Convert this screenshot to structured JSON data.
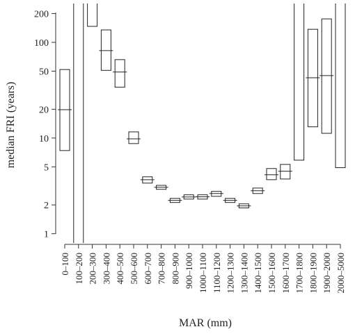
{
  "chart_data": {
    "type": "range-box",
    "y_label": "median FRI (years)",
    "x_label": "MAR (mm)",
    "log_y": true,
    "categories": [
      "0–100",
      "100–200",
      "200–300",
      "300–400",
      "400–500",
      "500–600",
      "600–700",
      "700–800",
      "800–900",
      "900–1000",
      "1000–1100",
      "1100–1200",
      "1200–1300",
      "1300–1400",
      "1400–1500",
      "1500–1600",
      "1600–1700",
      "1700–1800",
      "1800–1900",
      "1900–2000",
      "2000–5000"
    ],
    "low": [
      7.4,
      0.7,
      147,
      51,
      34,
      8.75,
      3.38,
      2.91,
      2.12,
      2.3,
      2.3,
      2.46,
      2.12,
      1.86,
      2.63,
      3.67,
      3.73,
      5.87,
      13.1,
      11.2,
      4.9
    ],
    "high": [
      52,
      300,
      300,
      135,
      66,
      11.6,
      3.93,
      3.2,
      2.34,
      2.55,
      2.55,
      2.77,
      2.34,
      2.05,
      3.0,
      4.8,
      5.3,
      300,
      137,
      176,
      300
    ],
    "median": [
      19.8,
      null,
      null,
      82,
      49,
      9.8,
      3.67,
      3.06,
      2.23,
      2.42,
      2.43,
      2.63,
      2.23,
      1.95,
      2.81,
      4.13,
      4.5,
      null,
      42.7,
      45,
      null
    ],
    "color": "#222",
    "ylim": [
      0.8,
      255
    ],
    "yticks": [
      1,
      2,
      5,
      10,
      20,
      50,
      100,
      200
    ]
  }
}
